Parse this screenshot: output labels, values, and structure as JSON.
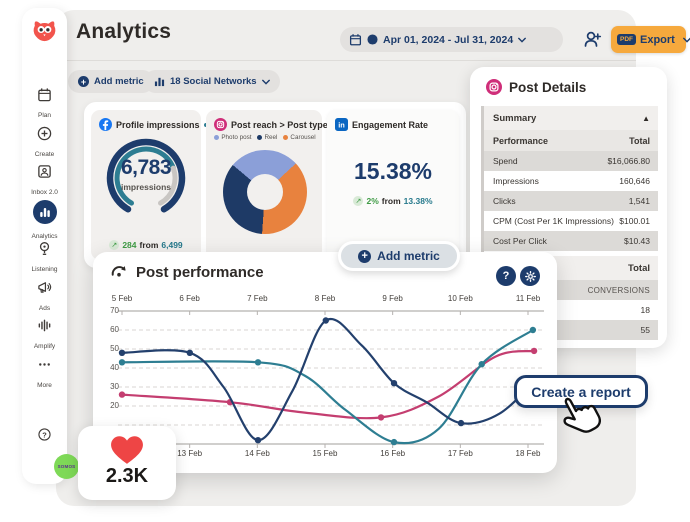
{
  "header": {
    "title": "Analytics",
    "date_range": "Apr 01, 2024 - Jul 31, 2024",
    "export_badge": "PDF",
    "export_label": "Export"
  },
  "sidebar": {
    "items": [
      {
        "label": "Plan",
        "icon": "calendar-icon",
        "active": false
      },
      {
        "label": "Create",
        "icon": "plus-circle-icon",
        "active": false
      },
      {
        "label": "Inbox 2.0",
        "icon": "inbox-icon",
        "active": false
      },
      {
        "label": "Analytics",
        "icon": "bar-chart-icon",
        "active": true
      },
      {
        "label": "Listening",
        "icon": "bulb-icon",
        "active": false
      },
      {
        "label": "Ads",
        "icon": "megaphone-icon",
        "active": false
      },
      {
        "label": "Amplify",
        "icon": "amplify-icon",
        "active": false
      },
      {
        "label": "More",
        "icon": "dots-icon",
        "active": false
      }
    ],
    "avatar_label": "SOMOS"
  },
  "toolbar": {
    "add_metric_label": "Add metric",
    "networks_label": "18 Social Networks"
  },
  "cards": {
    "profile_impressions": {
      "title": "Profile impressions",
      "value": "6,783",
      "unit": "impressions",
      "delta": "284",
      "from_word": "from",
      "previous": "6,499"
    },
    "post_reach": {
      "title": "Post reach > Post type",
      "legend": [
        {
          "label": "Photo post",
          "color": "#8b9fd8"
        },
        {
          "label": "Reel",
          "color": "#1e3a66"
        },
        {
          "label": "Carousel",
          "color": "#e8823e"
        }
      ],
      "segments": [
        {
          "label": "Photo post",
          "color": "#8b9fd8",
          "pct": 27
        },
        {
          "label": "Carousel",
          "color": "#e8823e",
          "pct": 38
        },
        {
          "label": "Reel",
          "color": "#1e3a66",
          "pct": 35
        }
      ]
    },
    "engagement_rate": {
      "title": "Engagement Rate",
      "value": "15.38%",
      "delta": "2%",
      "from_word": "from",
      "previous": "13.38%"
    },
    "add_metric_label": "Add metric"
  },
  "post_details": {
    "title": "Post Details",
    "summary_label": "Summary",
    "columns": [
      "Performance",
      "Total"
    ],
    "rows": [
      [
        "Spend",
        "$16,066.80"
      ],
      [
        "Impressions",
        "160,646"
      ],
      [
        "Clicks",
        "1,541"
      ],
      [
        "CPM (Cost Per 1K Impressions)",
        "$100.01"
      ],
      [
        "Cost Per Click",
        "$10.43"
      ]
    ],
    "totals_section": {
      "header": "Total",
      "label": "CONVERSIONS",
      "values": [
        "18",
        "55"
      ]
    }
  },
  "chart_data": {
    "type": "line",
    "title": "Post performance",
    "top_axis_labels": [
      "5 Feb",
      "6 Feb",
      "7 Feb",
      "8 Feb",
      "9 Feb",
      "10 Feb",
      "11 Feb"
    ],
    "bottom_axis_labels": [
      "13 Feb",
      "14 Feb",
      "15 Feb",
      "16 Feb",
      "17 Feb",
      "18 Feb"
    ],
    "y_ticks": [
      70,
      60,
      50,
      40,
      30,
      20
    ],
    "gridlines": [
      60,
      50,
      40,
      30,
      20,
      10
    ],
    "ylim": [
      0,
      70
    ],
    "legend_position": "none",
    "grid": "dashed-horizontal",
    "series": [
      {
        "name": "pink-series",
        "color": "#c43e70",
        "points": [
          {
            "x": 0,
            "y": 26,
            "dot": true
          },
          {
            "x": 0.266,
            "y": 22,
            "dot": true
          },
          {
            "x": 0.45,
            "y": 16.5,
            "dot": false
          },
          {
            "x": 0.638,
            "y": 14,
            "dot": true
          },
          {
            "x": 0.78,
            "y": 25,
            "dot": false
          },
          {
            "x": 0.92,
            "y": 46,
            "dot": false
          },
          {
            "x": 1.015,
            "y": 49,
            "dot": true
          }
        ]
      },
      {
        "name": "teal-series",
        "color": "#2e7e92",
        "points": [
          {
            "x": 0,
            "y": 43,
            "dot": true
          },
          {
            "x": 0.335,
            "y": 43,
            "dot": true
          },
          {
            "x": 0.45,
            "y": 36,
            "dot": false
          },
          {
            "x": 0.55,
            "y": 18,
            "dot": false
          },
          {
            "x": 0.67,
            "y": 1,
            "dot": true
          },
          {
            "x": 0.78,
            "y": 8,
            "dot": false
          },
          {
            "x": 0.886,
            "y": 42,
            "dot": true
          },
          {
            "x": 1.012,
            "y": 60,
            "dot": true
          }
        ]
      },
      {
        "name": "navy-series",
        "color": "#23406d",
        "points": [
          {
            "x": 0,
            "y": 48,
            "dot": true
          },
          {
            "x": 0.167,
            "y": 48,
            "dot": true
          },
          {
            "x": 0.25,
            "y": 30,
            "dot": false
          },
          {
            "x": 0.335,
            "y": 2,
            "dot": true
          },
          {
            "x": 0.42,
            "y": 28,
            "dot": false
          },
          {
            "x": 0.502,
            "y": 65,
            "dot": true
          },
          {
            "x": 0.59,
            "y": 52,
            "dot": false
          },
          {
            "x": 0.67,
            "y": 32,
            "dot": true
          },
          {
            "x": 0.75,
            "y": 22,
            "dot": false
          },
          {
            "x": 0.835,
            "y": 11,
            "dot": true
          },
          {
            "x": 0.93,
            "y": 16,
            "dot": false
          },
          {
            "x": 1.02,
            "y": 34,
            "dot": false
          }
        ]
      }
    ]
  },
  "cta": {
    "label": "Create a report"
  },
  "likes": {
    "value": "2.3K"
  }
}
